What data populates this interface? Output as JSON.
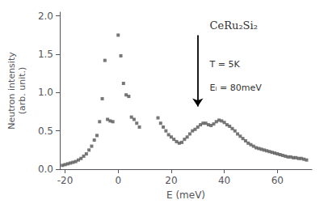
{
  "chart_data": {
    "type": "scatter",
    "title": "CeRu₂Si₂",
    "xlabel": "E (meV)",
    "ylabel": "Neutron intensity\n(arb. unit.)",
    "annotations": [
      "T = 5K",
      "Eᵢ = 80meV"
    ],
    "arrow": {
      "x": 30,
      "y_start": 1.75,
      "y_end": 0.82
    },
    "x": [
      -21,
      -20,
      -19,
      -18,
      -17,
      -16,
      -15,
      -14,
      -13,
      -12,
      -11,
      -10,
      -9,
      -8,
      -7,
      -6,
      -5,
      -4,
      -3,
      -2,
      0,
      1,
      2,
      3,
      4,
      5,
      6,
      7,
      8,
      15,
      16,
      17,
      18,
      19,
      20,
      21,
      22,
      23,
      24,
      25,
      26,
      27,
      28,
      29,
      30,
      31,
      32,
      33,
      34,
      35,
      36,
      37,
      38,
      39,
      40,
      41,
      42,
      43,
      44,
      45,
      46,
      47,
      48,
      49,
      50,
      51,
      52,
      53,
      54,
      55,
      56,
      57,
      58,
      59,
      60,
      61,
      62,
      63,
      64,
      65,
      66,
      67,
      68,
      69,
      70,
      71
    ],
    "values": [
      0.05,
      0.06,
      0.07,
      0.08,
      0.09,
      0.1,
      0.12,
      0.14,
      0.17,
      0.2,
      0.25,
      0.3,
      0.38,
      0.44,
      0.62,
      0.92,
      1.42,
      0.65,
      0.63,
      0.62,
      1.75,
      1.48,
      1.12,
      0.97,
      0.95,
      0.68,
      0.65,
      0.6,
      0.55,
      0.67,
      0.6,
      0.55,
      0.5,
      0.45,
      0.42,
      0.39,
      0.36,
      0.34,
      0.35,
      0.39,
      0.42,
      0.46,
      0.5,
      0.52,
      0.55,
      0.58,
      0.6,
      0.6,
      0.58,
      0.57,
      0.59,
      0.62,
      0.64,
      0.63,
      0.61,
      0.58,
      0.56,
      0.53,
      0.5,
      0.46,
      0.43,
      0.4,
      0.37,
      0.34,
      0.32,
      0.3,
      0.28,
      0.27,
      0.26,
      0.25,
      0.24,
      0.23,
      0.22,
      0.21,
      0.2,
      0.19,
      0.18,
      0.17,
      0.16,
      0.16,
      0.15,
      0.15,
      0.14,
      0.14,
      0.13,
      0.12
    ],
    "color": "#555555",
    "marker": "square",
    "xlim": [
      -22,
      73
    ],
    "ylim": [
      0,
      2.05
    ],
    "xticks": [
      -20,
      0,
      20,
      40,
      60
    ],
    "yticks": [
      {
        "value": 0,
        "label": "0.0"
      },
      0.5,
      {
        "value": 1,
        "label": "1.0"
      },
      1.5,
      {
        "value": 2,
        "label": "2.0"
      }
    ],
    "grid": false
  }
}
